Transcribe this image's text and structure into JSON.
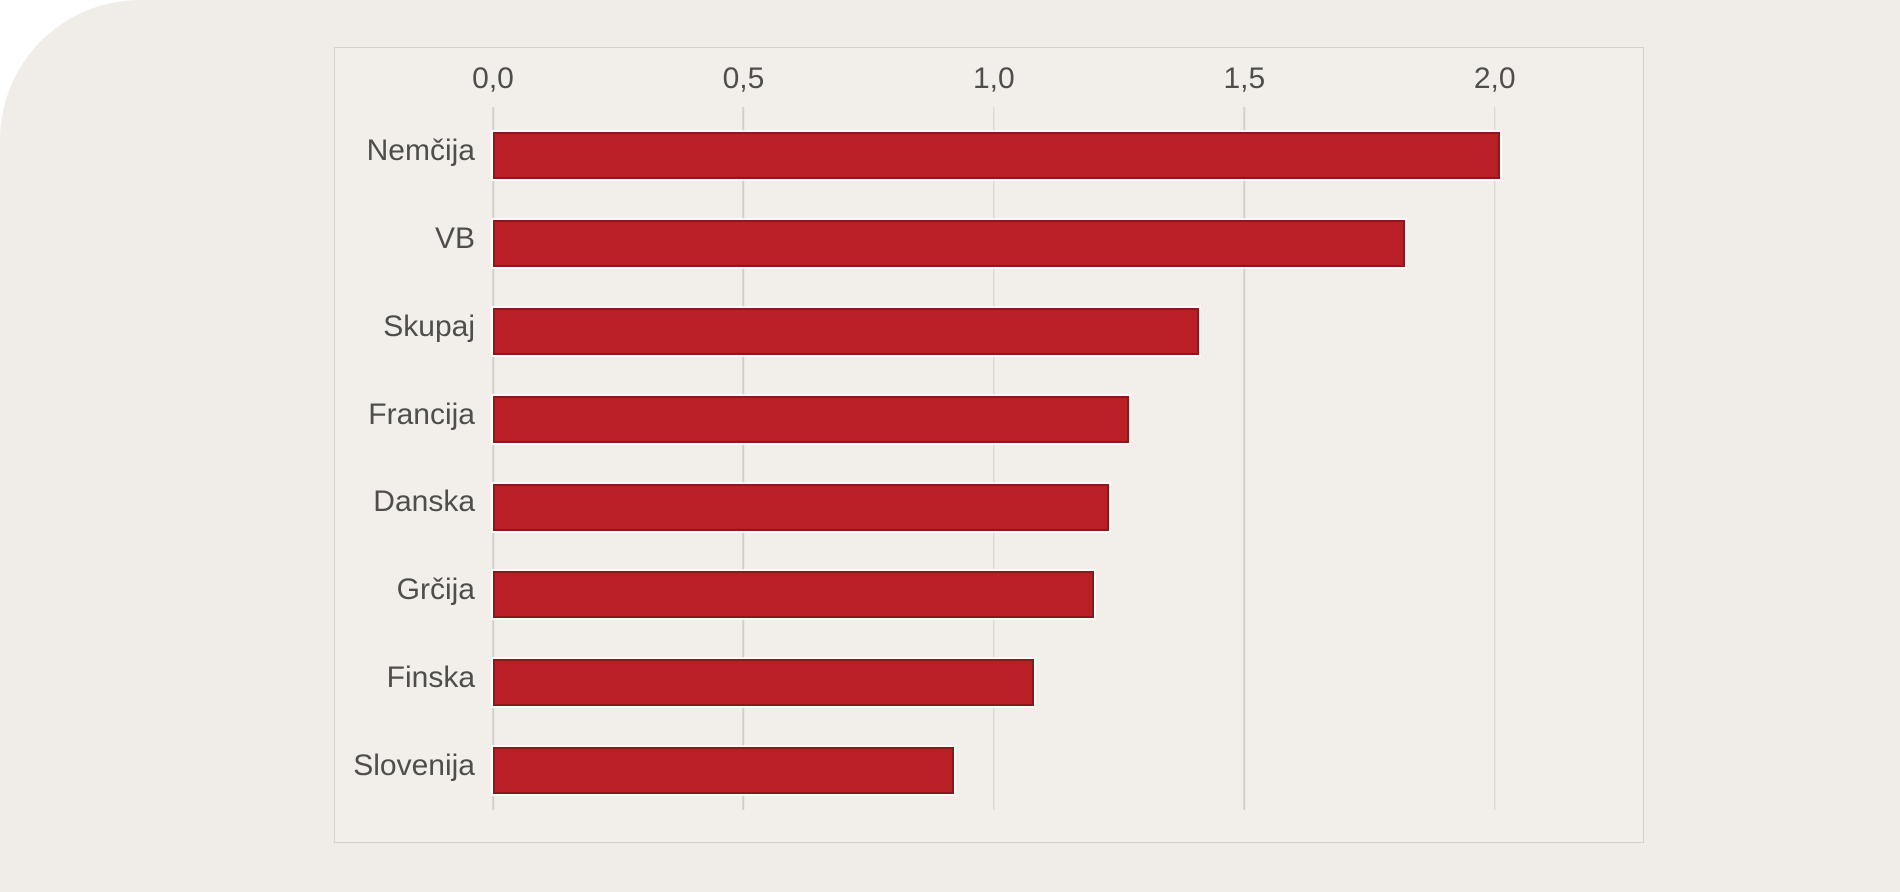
{
  "page": {
    "background_color": "#ffffff",
    "card_color": "#f0ece8"
  },
  "panel": {
    "border_color": "#d5d1cd",
    "background_color": "#f2efeb"
  },
  "chart_data": {
    "type": "bar",
    "orientation": "horizontal",
    "title": "",
    "xlabel": "",
    "ylabel": "",
    "categories": [
      "Nemčija",
      "VB",
      "Skupaj",
      "Francija",
      "Danska",
      "Grčija",
      "Finska",
      "Slovenija"
    ],
    "values": [
      2.01,
      1.82,
      1.41,
      1.27,
      1.23,
      1.2,
      1.08,
      0.92
    ],
    "x_tick_labels": [
      "0,0",
      "0,5",
      "1,0",
      "1,5",
      "2,0"
    ],
    "x_tick_values": [
      0,
      0.5,
      1.0,
      1.5,
      2.0
    ],
    "xlim": [
      0,
      2.3
    ],
    "decimal_separator": ",",
    "grid": true,
    "legend": false,
    "axis_ticks_position": "top",
    "bar_color": "#b92025",
    "bar_border_color": "#8c181c",
    "gridline_color": "#d3cfcb",
    "label_color": "#4f4e4b"
  }
}
